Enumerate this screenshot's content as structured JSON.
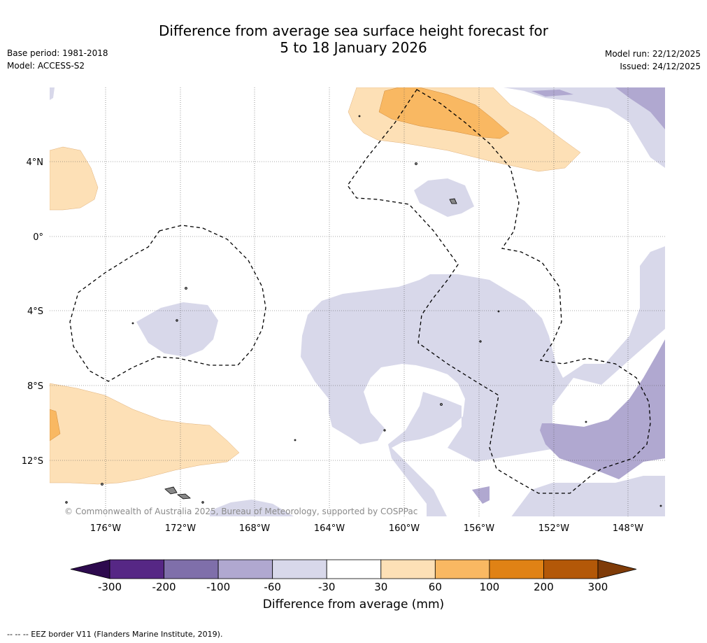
{
  "title": {
    "line1": "Difference from average sea surface height forecast for",
    "line2": "5 to 18 January 2026"
  },
  "meta_left": {
    "base_period": "Base period: 1981-2018",
    "model": "Model: ACCESS-S2"
  },
  "meta_right": {
    "model_run": "Model run: 22/12/2025",
    "issued": "Issued: 24/12/2025"
  },
  "map": {
    "lat_labels": [
      "4°N",
      "0°",
      "4°S",
      "8°S",
      "12°S"
    ],
    "lon_labels": [
      "176°W",
      "172°W",
      "168°W",
      "164°W",
      "160°W",
      "156°W",
      "152°W",
      "148°W"
    ],
    "copyright": "© Commonwealth of Australia 2025, Bureau of Meteorology, supported by COSPPac"
  },
  "colorbar": {
    "ticks": [
      "-300",
      "-200",
      "-100",
      "-60",
      "-30",
      "30",
      "60",
      "100",
      "200",
      "300"
    ],
    "label": "Difference from average (mm)",
    "colors": {
      "below_min": "#2d0a4e",
      "bins": [
        "#562785",
        "#7f6faa",
        "#b0a8d0",
        "#d8d8ea",
        "#ffffff",
        "#fde0b6",
        "#f9b862",
        "#e08215",
        "#b35808"
      ],
      "above_max": "#7f3b08"
    }
  },
  "legend_note": "--  --  -- EEZ border V11 (Flanders Marine Institute, 2019)."
}
